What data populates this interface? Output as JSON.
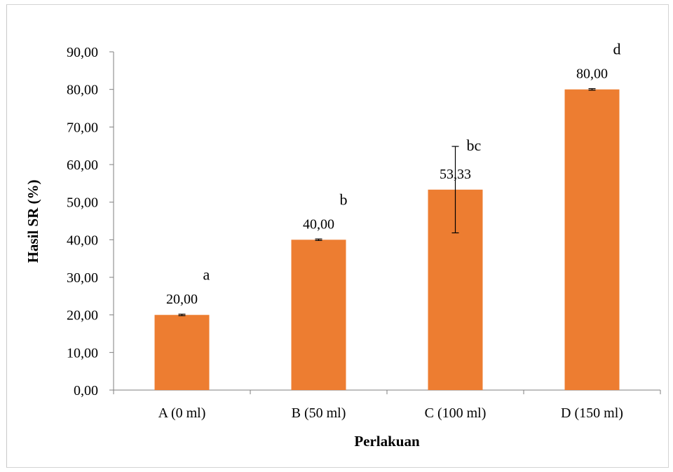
{
  "chart_data": {
    "type": "bar",
    "title": "",
    "xlabel": "Perlakuan",
    "ylabel": "Hasil SR (%)",
    "categories": [
      "A (0 ml)",
      "B (50 ml)",
      "C (100 ml)",
      "D (150 ml)"
    ],
    "values": [
      20.0,
      40.0,
      53.33,
      80.0
    ],
    "value_labels": [
      "20,00",
      "40,00",
      "53,33",
      "80,00"
    ],
    "error": [
      0.2,
      0.2,
      11.5,
      0.2
    ],
    "significance_letters": [
      "a",
      "b",
      "bc",
      "d"
    ],
    "ylim": [
      0,
      90
    ],
    "yticks": [
      "0,00",
      "10,00",
      "20,00",
      "30,00",
      "40,00",
      "50,00",
      "60,00",
      "70,00",
      "80,00",
      "90,00"
    ],
    "grid": false,
    "legend": "none",
    "bar_color": "#ED7D31"
  }
}
